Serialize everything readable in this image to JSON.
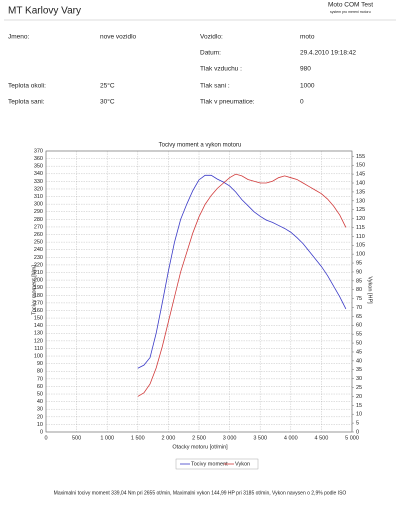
{
  "header": {
    "title": "MT Karlovy Vary",
    "brand": "Moto COM Test",
    "brand_sub": "system pro mereni motoru"
  },
  "left_fields": [
    {
      "label": "Jmeno:",
      "value": "nove vozidlo"
    },
    {
      "label": "Teplota okoli:",
      "value": "25°C"
    },
    {
      "label": "Teplota sani:",
      "value": "30°C"
    }
  ],
  "right_fields": [
    {
      "label": "Vozidlo:",
      "value": "moto"
    },
    {
      "label": "Datum:",
      "value": "29.4.2010 19:18:42"
    },
    {
      "label": "Tlak vzduchu :",
      "value": "980"
    },
    {
      "label": "Tlak sani :",
      "value": "1000"
    },
    {
      "label": "Tlak v pneumatice:",
      "value": "0"
    }
  ],
  "chart_data": {
    "type": "line",
    "title": "Tocivy moment a vykon motoru",
    "x_label": "Otacky motoru [ot/min]",
    "y_label": "Tocivy moment [Nm]",
    "y2_label": "Vykon [HP]",
    "grid": true,
    "x": [
      1500,
      1600,
      1700,
      1800,
      1900,
      2000,
      2100,
      2200,
      2300,
      2400,
      2500,
      2600,
      2700,
      2800,
      2900,
      3000,
      3100,
      3200,
      3300,
      3400,
      3500,
      3600,
      3700,
      3800,
      3900,
      4000,
      4100,
      4200,
      4300,
      4400,
      4500,
      4600,
      4700,
      4800,
      4900
    ],
    "series": [
      {
        "name": "Tocivy moment",
        "color": "#3c3cc8",
        "values": [
          84,
          88,
          98,
          130,
          170,
          212,
          250,
          280,
          300,
          318,
          332,
          338,
          338,
          333,
          329,
          324,
          316,
          306,
          298,
          290,
          284,
          279,
          276,
          272,
          268,
          263,
          256,
          248,
          238,
          228,
          218,
          206,
          192,
          178,
          162
        ]
      },
      {
        "name": "Vykon",
        "color": "#d23c3c",
        "axis": "y2",
        "values": [
          20,
          22,
          27,
          36,
          48,
          62,
          76,
          90,
          101,
          112,
          121,
          128,
          133,
          137,
          140,
          143,
          145,
          144,
          142,
          141,
          140,
          140,
          141,
          143,
          144,
          143,
          142,
          140,
          138,
          136,
          134,
          131,
          127,
          122,
          115
        ]
      }
    ],
    "xlim": [
      0,
      5000
    ],
    "xticks": [
      0,
      500,
      {
        "value": 1000,
        "label": "1 000"
      },
      {
        "value": 1500,
        "label": "1 500"
      },
      {
        "value": 2000,
        "label": "2 000"
      },
      {
        "value": 2500,
        "label": "2 500"
      },
      {
        "value": 3000,
        "label": "3 000"
      },
      {
        "value": 3500,
        "label": "3 500"
      },
      {
        "value": 4000,
        "label": "4 000"
      },
      {
        "value": 4500,
        "label": "4 500"
      },
      {
        "value": 5000,
        "label": "5 000"
      }
    ],
    "ylim": [
      0,
      370
    ],
    "yticks": [
      0,
      10,
      20,
      30,
      40,
      50,
      60,
      70,
      80,
      90,
      100,
      110,
      120,
      130,
      140,
      150,
      160,
      170,
      180,
      190,
      200,
      210,
      220,
      230,
      240,
      250,
      260,
      270,
      280,
      290,
      300,
      310,
      320,
      330,
      340,
      350,
      360,
      370
    ],
    "y2lim": [
      0,
      158
    ],
    "y2ticks": [
      0,
      5,
      10,
      15,
      20,
      25,
      30,
      35,
      40,
      45,
      50,
      55,
      60,
      65,
      70,
      75,
      80,
      85,
      90,
      95,
      100,
      105,
      110,
      115,
      120,
      125,
      130,
      135,
      140,
      145,
      150,
      155
    ]
  },
  "footer": "Maximalni tocivy moment 339,04 Nm pri 2655 ot/min,  Maximalni vykon 144,99 HP pri 3185 ot/min,  Vykon navysen o 2,9% podle ISO"
}
